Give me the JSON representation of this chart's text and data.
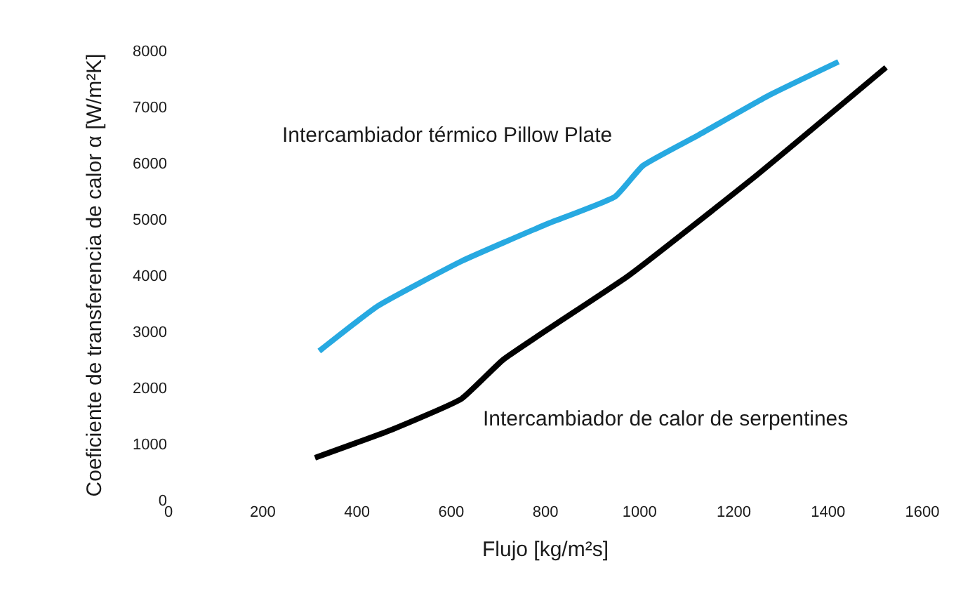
{
  "chart_data": {
    "type": "line",
    "xlabel": "Flujo [kg/m²s]",
    "ylabel": "Coeficiente de transferencia de calor α [W/m²K]",
    "xlim": [
      0,
      1600
    ],
    "xticks": [
      0,
      200,
      400,
      600,
      800,
      1000,
      1200,
      1400,
      1600
    ],
    "ylim": [
      0,
      8000
    ],
    "yticks": [
      0,
      1000,
      2000,
      3000,
      4000,
      5000,
      6000,
      7000,
      8000
    ],
    "legend": false,
    "marker": "none",
    "line_style": "solid",
    "series": [
      {
        "name": "Intercambiador térmico Pillow Plate",
        "color": "#27a9e1",
        "x": [
          320,
          444,
          622,
          800,
          948,
          1007,
          1126,
          1274,
          1422
        ],
        "values": [
          2650,
          3450,
          4250,
          4900,
          5400,
          5950,
          6500,
          7200,
          7800
        ]
      },
      {
        "name": "Intercambiador de calor de serpentines",
        "color": "#000000",
        "x": [
          311,
          474,
          622,
          711,
          978,
          1244,
          1523
        ],
        "values": [
          750,
          1250,
          1800,
          2500,
          4000,
          5750,
          7700
        ]
      }
    ]
  }
}
